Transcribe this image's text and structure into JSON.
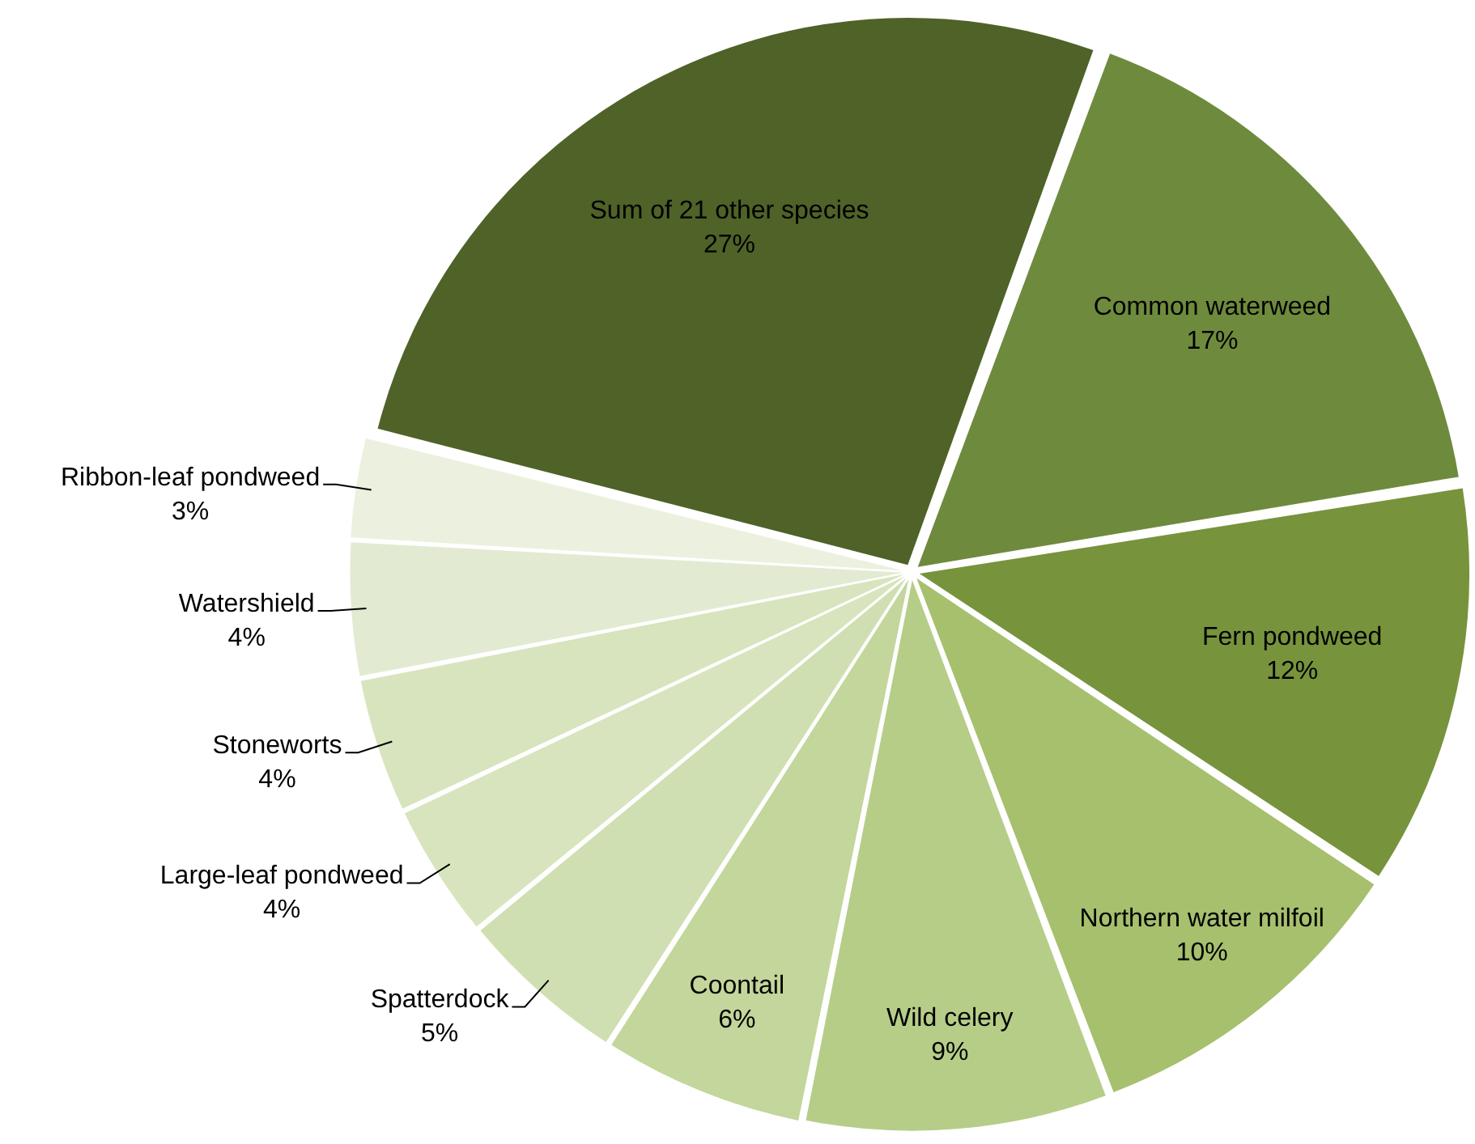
{
  "chart_data": {
    "type": "pie",
    "categories": [
      "Sum of 21 other species",
      "Common waterweed",
      "Fern pondweed",
      "Northern water milfoil",
      "Wild celery",
      "Coontail",
      "Spatterdock",
      "Large-leaf pondweed",
      "Stoneworts",
      "Watershield",
      "Ribbon-leaf pondweed"
    ],
    "values": [
      27,
      17,
      12,
      10,
      9,
      6,
      5,
      4,
      4,
      4,
      3
    ],
    "value_labels": [
      "27%",
      "17%",
      "12%",
      "10%",
      "9%",
      "6%",
      "5%",
      "4%",
      "4%",
      "4%",
      "3%"
    ],
    "colors": [
      "#4f6228",
      "#6e8b3d",
      "#77933c",
      "#a6c06e",
      "#b6cd88",
      "#c3d69b",
      "#cfdfb1",
      "#d7e4bd",
      "#d7e4bd",
      "#e2ebd2",
      "#ebf1de"
    ]
  }
}
